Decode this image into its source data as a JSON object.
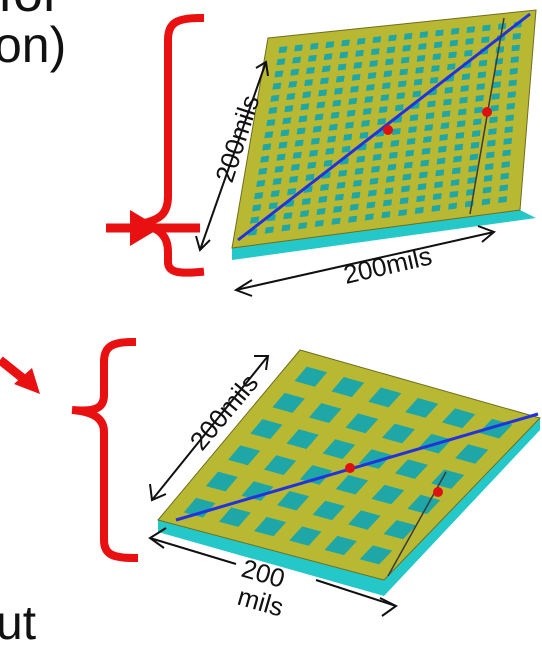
{
  "slide_text": {
    "top_line1": "for",
    "top_line2": "on)",
    "bottom_fragment": "ut"
  },
  "panels": [
    {
      "size_label_left": "200mils",
      "size_label_bottom": "200mils",
      "grid_count": 16
    },
    {
      "size_label_left": "200mils",
      "size_label_bottom_line1": "200",
      "size_label_bottom_line2": "mils",
      "grid_count": 6
    }
  ],
  "colors": {
    "bracket_arrow": "#e81010",
    "board_face": "#b8b832",
    "board_edge": "#25c8c8",
    "aperture": "#1fa6a6",
    "trace": "#2233dd",
    "via": "#dd1111"
  }
}
